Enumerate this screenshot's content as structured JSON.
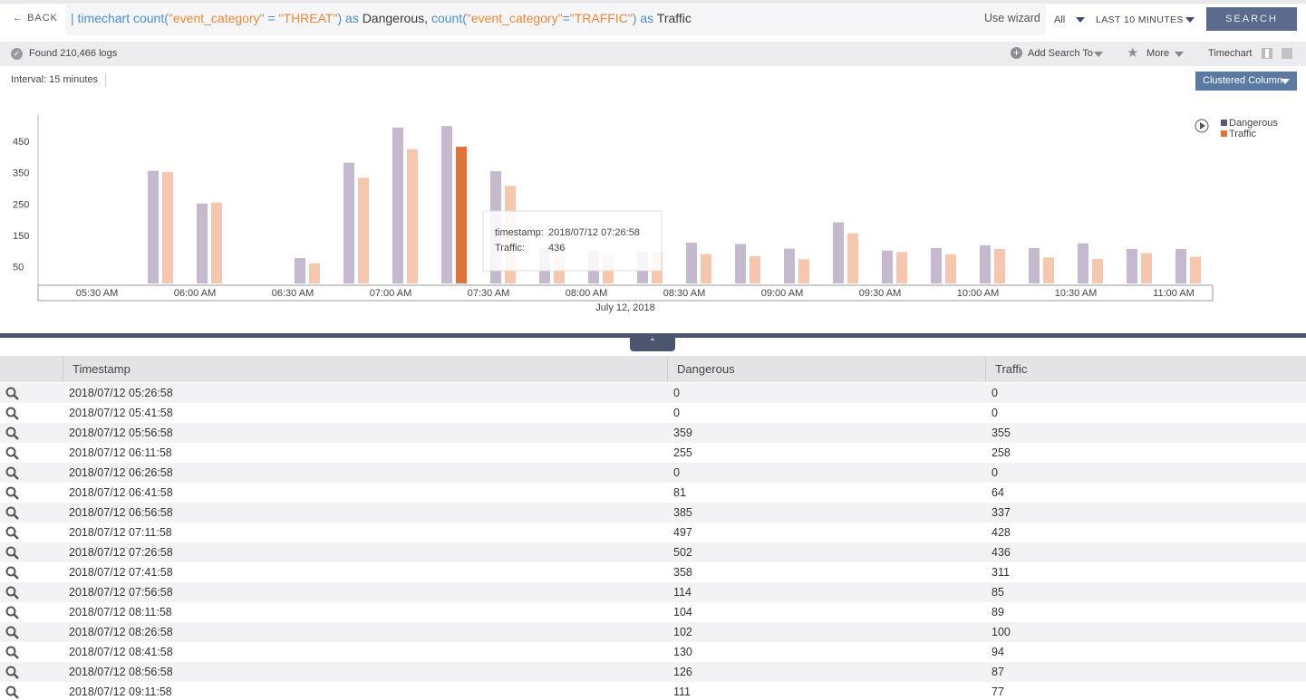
{
  "toolbar": {
    "back": "BACK",
    "query": [
      {
        "text": "| timechart count(",
        "color": "#4a8fc7"
      },
      {
        "text": "\"event_category\"",
        "color": "#e8873a"
      },
      {
        "text": " = ",
        "color": "#4a8fc7"
      },
      {
        "text": "\"THREAT\"",
        "color": "#e8873a"
      },
      {
        "text": ") as ",
        "color": "#4a8fc7"
      },
      {
        "text": "Dangerous, ",
        "color": "#3a3a3a"
      },
      {
        "text": "count(",
        "color": "#4a8fc7"
      },
      {
        "text": "\"event_category\"",
        "color": "#e8873a"
      },
      {
        "text": "=",
        "color": "#4a8fc7"
      },
      {
        "text": "\"TRAFFIC\"",
        "color": "#e8873a"
      },
      {
        "text": ") as ",
        "color": "#4a8fc7"
      },
      {
        "text": "Traffic",
        "color": "#3a3a3a"
      }
    ],
    "use_wizard": "Use wizard",
    "scope": "All",
    "time_range": "LAST 10 MINUTES",
    "search": "SEARCH"
  },
  "status": {
    "found": "Found 210,466 logs",
    "add_search": "Add Search To",
    "more": "More",
    "view": "Timechart"
  },
  "interval": "Interval: 15 minutes",
  "chart_style": "Clustered Column",
  "chart_data": {
    "type": "bar",
    "categories": [
      null,
      null,
      null,
      null,
      null,
      null,
      null,
      null,
      null,
      null,
      null,
      null,
      null,
      null,
      null,
      null,
      null,
      null,
      null,
      null,
      null,
      null,
      null,
      null
    ],
    "series": [
      {
        "name": "Dangerous",
        "color": "#c5b9cd",
        "legend_color": "#5b5672",
        "values": [
          0,
          0,
          359,
          255,
          0,
          81,
          385,
          497,
          502,
          358,
          114,
          104,
          102,
          130,
          126,
          111,
          195,
          105,
          113,
          122,
          113,
          128,
          110,
          110
        ]
      },
      {
        "name": "Traffic",
        "color": "#f5c7ae",
        "legend_color": "#e0733a",
        "values": [
          0,
          0,
          355,
          258,
          0,
          64,
          337,
          428,
          436,
          311,
          85,
          89,
          100,
          94,
          87,
          77,
          160,
          100,
          93,
          110,
          83,
          78,
          97,
          85
        ]
      }
    ],
    "highlight": {
      "series": 1,
      "index": 8,
      "color": "#e0733a"
    },
    "xtick_labels": [
      "05:30 AM",
      "06:00 AM",
      "06:30 AM",
      "07:00 AM",
      "07:30 AM",
      "08:00 AM",
      "08:30 AM",
      "09:00 AM",
      "09:30 AM",
      "10:00 AM",
      "10:30 AM",
      "11:00 AM"
    ],
    "xlabel": "July 12, 2018",
    "ylim": [
      0,
      540
    ],
    "yticks": [
      50,
      150,
      250,
      350,
      450
    ],
    "tooltip": {
      "timestamp_label": "timestamp:",
      "value_label": "Traffic:"
    }
  },
  "table": {
    "columns": [
      "Timestamp",
      "Dangerous",
      "Traffic"
    ],
    "rows": [
      [
        "2018/07/12 05:26:58",
        0,
        0
      ],
      [
        "2018/07/12 05:41:58",
        0,
        0
      ],
      [
        "2018/07/12 05:56:58",
        359,
        355
      ],
      [
        "2018/07/12 06:11:58",
        255,
        258
      ],
      [
        "2018/07/12 06:26:58",
        0,
        0
      ],
      [
        "2018/07/12 06:41:58",
        81,
        64
      ],
      [
        "2018/07/12 06:56:58",
        385,
        337
      ],
      [
        "2018/07/12 07:11:58",
        497,
        428
      ],
      [
        "2018/07/12 07:26:58",
        502,
        436
      ],
      [
        "2018/07/12 07:41:58",
        358,
        311
      ],
      [
        "2018/07/12 07:56:58",
        114,
        85
      ],
      [
        "2018/07/12 08:11:58",
        104,
        89
      ],
      [
        "2018/07/12 08:26:58",
        102,
        100
      ],
      [
        "2018/07/12 08:41:58",
        130,
        94
      ],
      [
        "2018/07/12 08:56:58",
        126,
        87
      ],
      [
        "2018/07/12 09:11:58",
        111,
        77
      ]
    ]
  }
}
